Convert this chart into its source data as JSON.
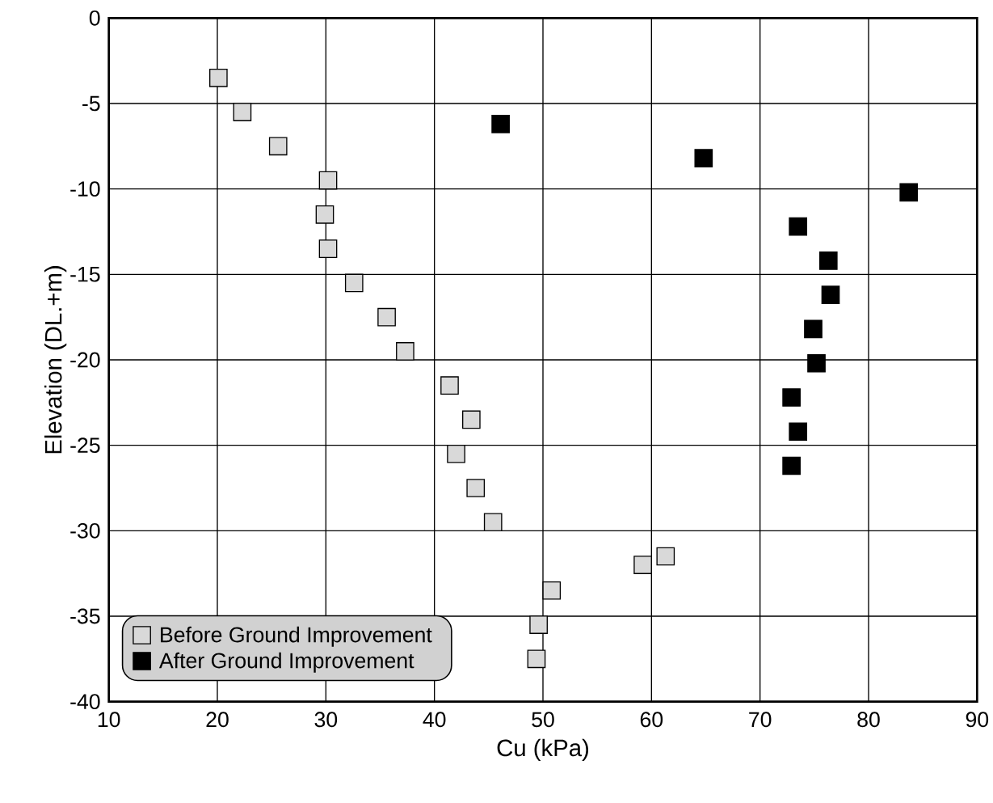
{
  "chart_data": {
    "type": "scatter",
    "xlabel": "Cu (kPa)",
    "ylabel": "Elevation (DL.+m)",
    "xlim": [
      10,
      90
    ],
    "ylim": [
      -40,
      0
    ],
    "xticks": [
      10,
      20,
      30,
      40,
      50,
      60,
      70,
      80,
      90
    ],
    "yticks": [
      0,
      -5,
      -10,
      -15,
      -20,
      -25,
      -30,
      -35,
      -40
    ],
    "grid": true,
    "legend": "bottom left",
    "marker": "square",
    "series": [
      {
        "name": "Before Ground Improvement",
        "color": "#d9d9d9",
        "x": [
          20.1,
          22.3,
          25.6,
          30.2,
          29.9,
          30.2,
          32.6,
          35.6,
          37.3,
          41.4,
          43.4,
          42.0,
          43.8,
          45.4,
          61.3,
          59.2,
          50.8,
          49.6,
          49.4
        ],
        "values": [
          -3.5,
          -5.5,
          -7.5,
          -9.5,
          -11.5,
          -13.5,
          -15.5,
          -17.5,
          -19.5,
          -21.5,
          -23.5,
          -25.5,
          -27.5,
          -29.5,
          -31.5,
          -32.0,
          -33.5,
          -35.5,
          -37.5
        ]
      },
      {
        "name": "After Ground Improvement",
        "color": "#000000",
        "x": [
          46.1,
          64.8,
          83.7,
          73.5,
          76.3,
          76.5,
          74.9,
          75.2,
          72.9,
          73.5,
          72.9
        ],
        "values": [
          -6.2,
          -8.2,
          -10.2,
          -12.2,
          -14.2,
          -16.2,
          -18.2,
          -20.2,
          -22.2,
          -24.2,
          -26.2
        ]
      }
    ]
  }
}
